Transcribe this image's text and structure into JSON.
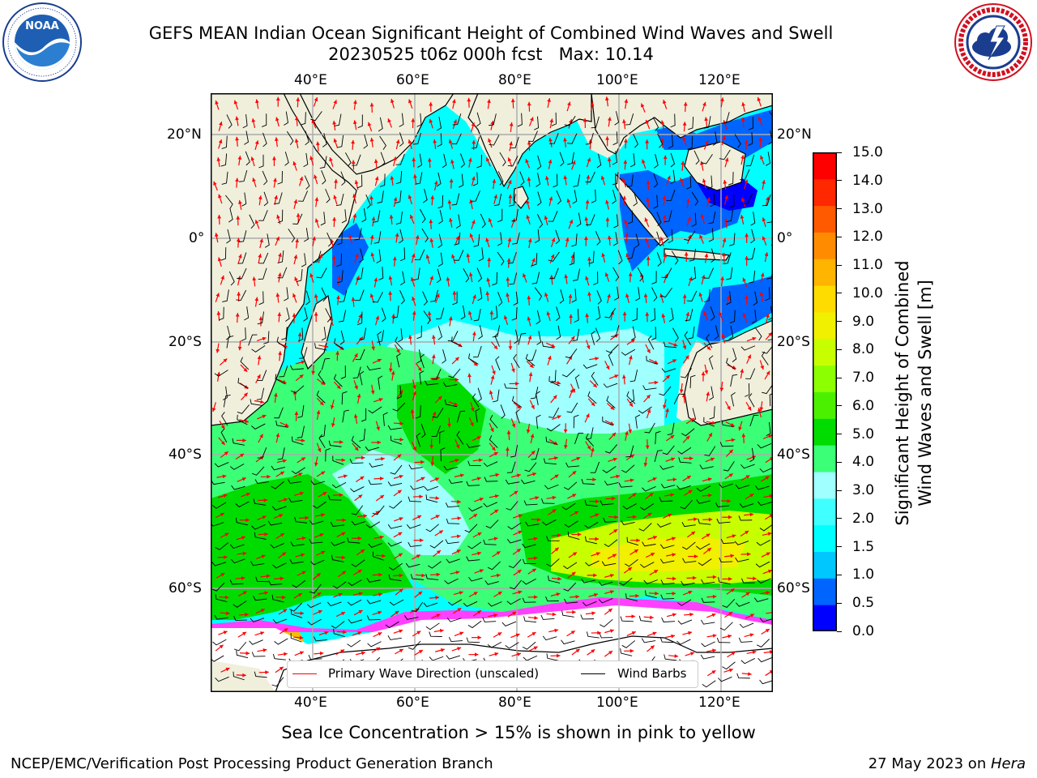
{
  "title": {
    "line1": "GEFS MEAN Indian Ocean Significant Height of Combined Wind Waves and Swell",
    "line2": "20230525 t06z 000h fcst   Max: 10.14"
  },
  "logos": {
    "left": {
      "icon": "noaa-logo",
      "text": "NOAA",
      "ring_text": "NATIONAL OCEANIC AND ATMOSPHERIC ADMINISTRATION · U.S. DEPARTMENT OF COMMERCE"
    },
    "right": {
      "icon": "nws-logo",
      "ring_text": "NATIONAL WEATHER SERVICE"
    }
  },
  "map": {
    "lon_labels": [
      "40°E",
      "60°E",
      "80°E",
      "100°E",
      "120°E"
    ],
    "lat_labels": [
      "20°N",
      "0°",
      "20°S",
      "40°S",
      "60°S"
    ],
    "colors": {
      "ocean_low": "#00ffff",
      "ocean_mid": "#a0ffff",
      "land": "#efefdc",
      "ice": "#ffffff"
    }
  },
  "colorbar": {
    "label_line1": "Significant Height of Combined",
    "label_line2": "Wind Waves and Swell [m]",
    "ticks": [
      "0.0",
      "0.5",
      "1.0",
      "1.5",
      "2.0",
      "3.0",
      "4.0",
      "5.0",
      "6.0",
      "7.0",
      "8.0",
      "9.0",
      "10.0",
      "11.0",
      "12.0",
      "13.0",
      "14.0",
      "15.0"
    ],
    "colors": [
      "#0000ff",
      "#0064ff",
      "#00c8ff",
      "#00ffff",
      "#40ffff",
      "#a0ffff",
      "#3cff78",
      "#00dc00",
      "#4bf000",
      "#8cff00",
      "#c8ff00",
      "#f0f000",
      "#ffdc00",
      "#ffb400",
      "#ff8c00",
      "#ff5a00",
      "#ff2800",
      "#ff0000"
    ]
  },
  "legend": {
    "primary_wave": "Primary Wave Direction (unscaled)",
    "wind_barbs": "Wind Barbs",
    "colors": {
      "primary_wave": "#ff0000",
      "wind_barbs": "#000000"
    }
  },
  "caption": "Sea Ice Concentration > 15% is shown in pink to yellow",
  "footer": {
    "left": "NCEP/EMC/Verification Post Processing Product Generation Branch",
    "date": "27 May 2023 on ",
    "host": "Hera"
  }
}
